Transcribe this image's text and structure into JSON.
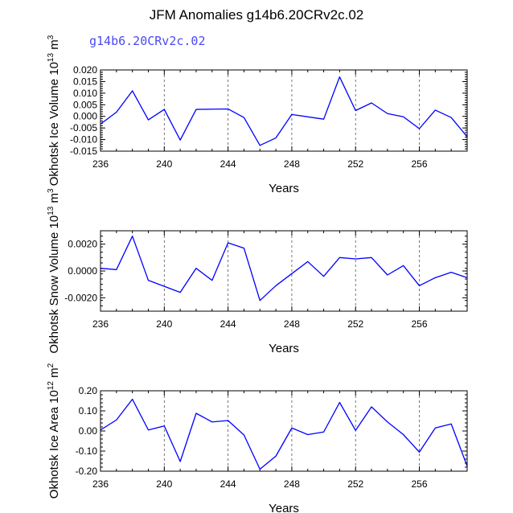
{
  "figure": {
    "title": "JFM Anomalies g14b6.20CRv2c.02",
    "subtitle": "g14b6.20CRv2c.02",
    "colors": {
      "line": "#0000ff",
      "subtitle": "#4a4af2",
      "axes": "#000000",
      "gridline": "#555555"
    }
  },
  "chart_data": [
    {
      "type": "line",
      "xlabel": "Years",
      "ylabel": "Okhotsk Ice Volume 10",
      "ylabel_exponent": "13",
      "ylabel_unit": " m",
      "ylabel_unit_exponent": "3",
      "xlim": [
        236,
        259
      ],
      "ylim": [
        -0.015,
        0.02
      ],
      "xticks": [
        236,
        240,
        244,
        248,
        252,
        256
      ],
      "xtick_labels": [
        "236",
        "240",
        "244",
        "248",
        "252",
        "256"
      ],
      "yticks": [
        -0.015,
        -0.01,
        -0.005,
        0.0,
        0.005,
        0.01,
        0.015,
        0.02
      ],
      "ytick_labels": [
        "-0.015",
        "-0.010",
        "-0.005",
        "0.000",
        "0.005",
        "0.010",
        "0.015",
        "0.020"
      ],
      "grid": "vertical dashed at labeled x ticks",
      "x": [
        236,
        237,
        238,
        239,
        240,
        241,
        242,
        243,
        244,
        245,
        246,
        247,
        248,
        249,
        250,
        251,
        252,
        253,
        254,
        255,
        256,
        257,
        258,
        259
      ],
      "values": [
        -0.0033,
        0.0018,
        0.011,
        -0.0015,
        0.003,
        -0.0102,
        0.003,
        0.0031,
        0.0032,
        -0.0005,
        -0.0125,
        -0.0093,
        0.0008,
        null,
        -0.0012,
        0.017,
        0.0025,
        0.0058,
        0.0012,
        -0.0002,
        -0.0053,
        0.0027,
        -0.0005,
        -0.0088
      ]
    },
    {
      "type": "line",
      "xlabel": "Years",
      "ylabel": "Okhotsk Snow Volume 10",
      "ylabel_exponent": "13",
      "ylabel_unit": " m",
      "ylabel_unit_exponent": "3",
      "xlim": [
        236,
        259
      ],
      "ylim": [
        -0.003,
        0.003
      ],
      "xticks": [
        236,
        240,
        244,
        248,
        252,
        256
      ],
      "xtick_labels": [
        "236",
        "240",
        "244",
        "248",
        "252",
        "256"
      ],
      "yticks": [
        -0.002,
        0.0,
        0.002
      ],
      "ytick_labels": [
        "-0.0020",
        "0.0000",
        "0.0020"
      ],
      "grid": "vertical dashed at labeled x ticks",
      "x": [
        236,
        237,
        238,
        239,
        240,
        241,
        242,
        243,
        244,
        245,
        246,
        247,
        248,
        249,
        250,
        251,
        252,
        253,
        254,
        255,
        256,
        257,
        258,
        259
      ],
      "values": [
        0.0002,
        0.0001,
        0.0026,
        -0.0007,
        null,
        -0.0016,
        0.0002,
        -0.0007,
        0.0021,
        0.0017,
        -0.0022,
        -0.0011,
        -0.0002,
        0.0007,
        -0.0004,
        0.001,
        0.0009,
        0.001,
        -0.0003,
        0.0004,
        -0.0011,
        -0.0005,
        -0.0001,
        -0.0005
      ]
    },
    {
      "type": "line",
      "xlabel": "Years",
      "ylabel": "Okhotsk Ice Area 10",
      "ylabel_exponent": "12",
      "ylabel_unit": " m",
      "ylabel_unit_exponent": "2",
      "xlim": [
        236,
        259
      ],
      "ylim": [
        -0.2,
        0.2
      ],
      "xticks": [
        236,
        240,
        244,
        248,
        252,
        256
      ],
      "xtick_labels": [
        "236",
        "240",
        "244",
        "248",
        "252",
        "256"
      ],
      "yticks": [
        -0.2,
        -0.1,
        0.0,
        0.1,
        0.2
      ],
      "ytick_labels": [
        "-0.20",
        "-0.10",
        "0.00",
        "0.10",
        "0.20"
      ],
      "grid": "vertical dashed at labeled x ticks",
      "x": [
        236,
        237,
        238,
        239,
        240,
        241,
        242,
        243,
        244,
        245,
        246,
        247,
        248,
        249,
        250,
        251,
        252,
        253,
        254,
        255,
        256,
        257,
        258,
        259
      ],
      "values": [
        0.005,
        0.055,
        0.158,
        0.005,
        0.025,
        -0.152,
        0.088,
        0.045,
        0.052,
        -0.02,
        -0.19,
        -0.125,
        0.015,
        -0.018,
        -0.005,
        0.142,
        0.003,
        0.12,
        0.045,
        -0.018,
        -0.105,
        0.015,
        0.035,
        -0.175
      ]
    }
  ]
}
